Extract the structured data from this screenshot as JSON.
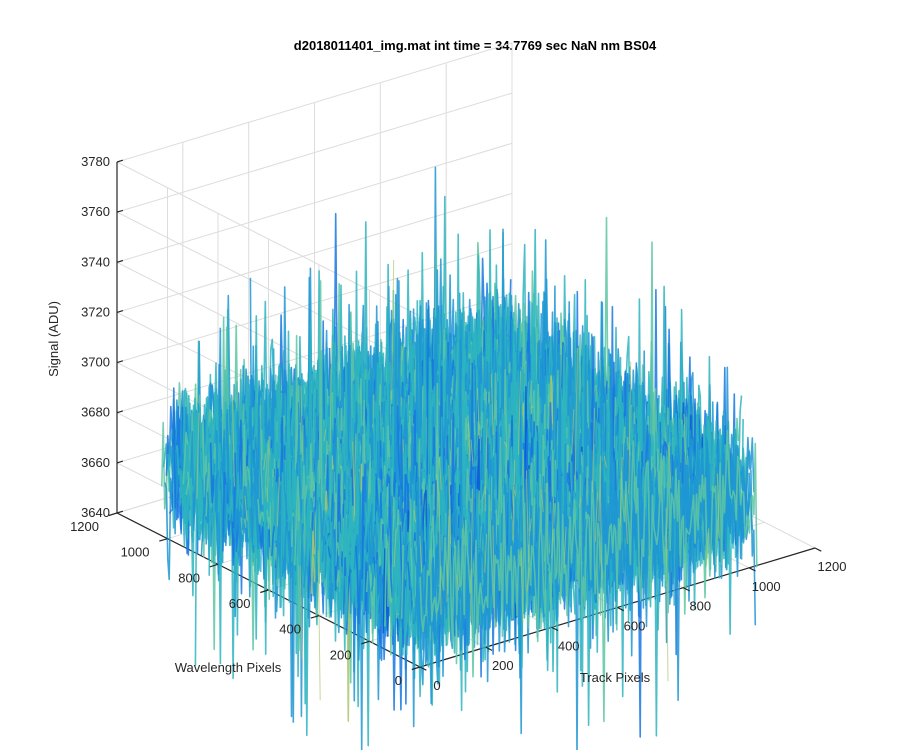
{
  "chart_data": {
    "type": "surface",
    "title": "d2018011401_img.mat int time = 34.7769 sec  NaN nm BS04",
    "xlabel": "Track Pixels",
    "ylabel": "Wavelength Pixels",
    "zlabel": "Signal (ADU)",
    "xlim": [
      0,
      1200
    ],
    "ylim": [
      0,
      1200
    ],
    "zlim": [
      3640,
      3780
    ],
    "x_ticks": [
      "0",
      "200",
      "400",
      "600",
      "800",
      "1000",
      "1200"
    ],
    "y_ticks": [
      "0",
      "200",
      "400",
      "600",
      "800",
      "1000",
      "1200"
    ],
    "z_ticks": [
      "3640",
      "3660",
      "3680",
      "3700",
      "3720",
      "3740",
      "3760",
      "3780"
    ],
    "surface_extent": {
      "x": [
        1,
        1024
      ],
      "y": [
        1,
        1024
      ]
    },
    "mean_signal": 3668,
    "noise_amplitude": 14,
    "grid": true,
    "colormap": [
      "#0c5bd6",
      "#1877e0",
      "#1f96d4",
      "#2db4c0",
      "#5ec6a3",
      "#a8c871"
    ]
  }
}
